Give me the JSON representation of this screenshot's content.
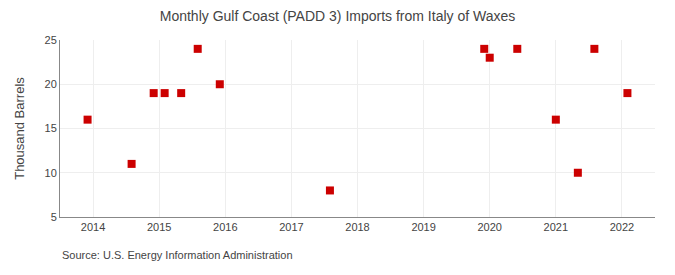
{
  "chart_data": {
    "type": "scatter",
    "title": "Monthly Gulf Coast (PADD 3) Imports from Italy of Waxes",
    "ylabel": "Thousand Barrels",
    "annotations": [
      "Source: U.S. Energy Information Administration"
    ],
    "x": [
      2013.917,
      2014.583,
      2014.917,
      2015.083,
      2015.333,
      2015.583,
      2015.917,
      2017.583,
      2019.917,
      2020.0,
      2020.417,
      2021.0,
      2021.333,
      2021.583,
      2022.083
    ],
    "values": [
      16,
      11,
      19,
      19,
      19,
      24,
      20,
      8,
      24,
      23,
      24,
      16,
      10,
      24,
      19
    ],
    "color": "#cc0000",
    "marker": "square",
    "xlim": [
      2013.5,
      2022.5
    ],
    "xticks": [
      2014,
      2015,
      2016,
      2017,
      2018,
      2019,
      2020,
      2021,
      2022
    ],
    "ylim": [
      5,
      25
    ],
    "yticks": [
      5,
      10,
      15,
      20,
      25
    ],
    "grid": true
  }
}
